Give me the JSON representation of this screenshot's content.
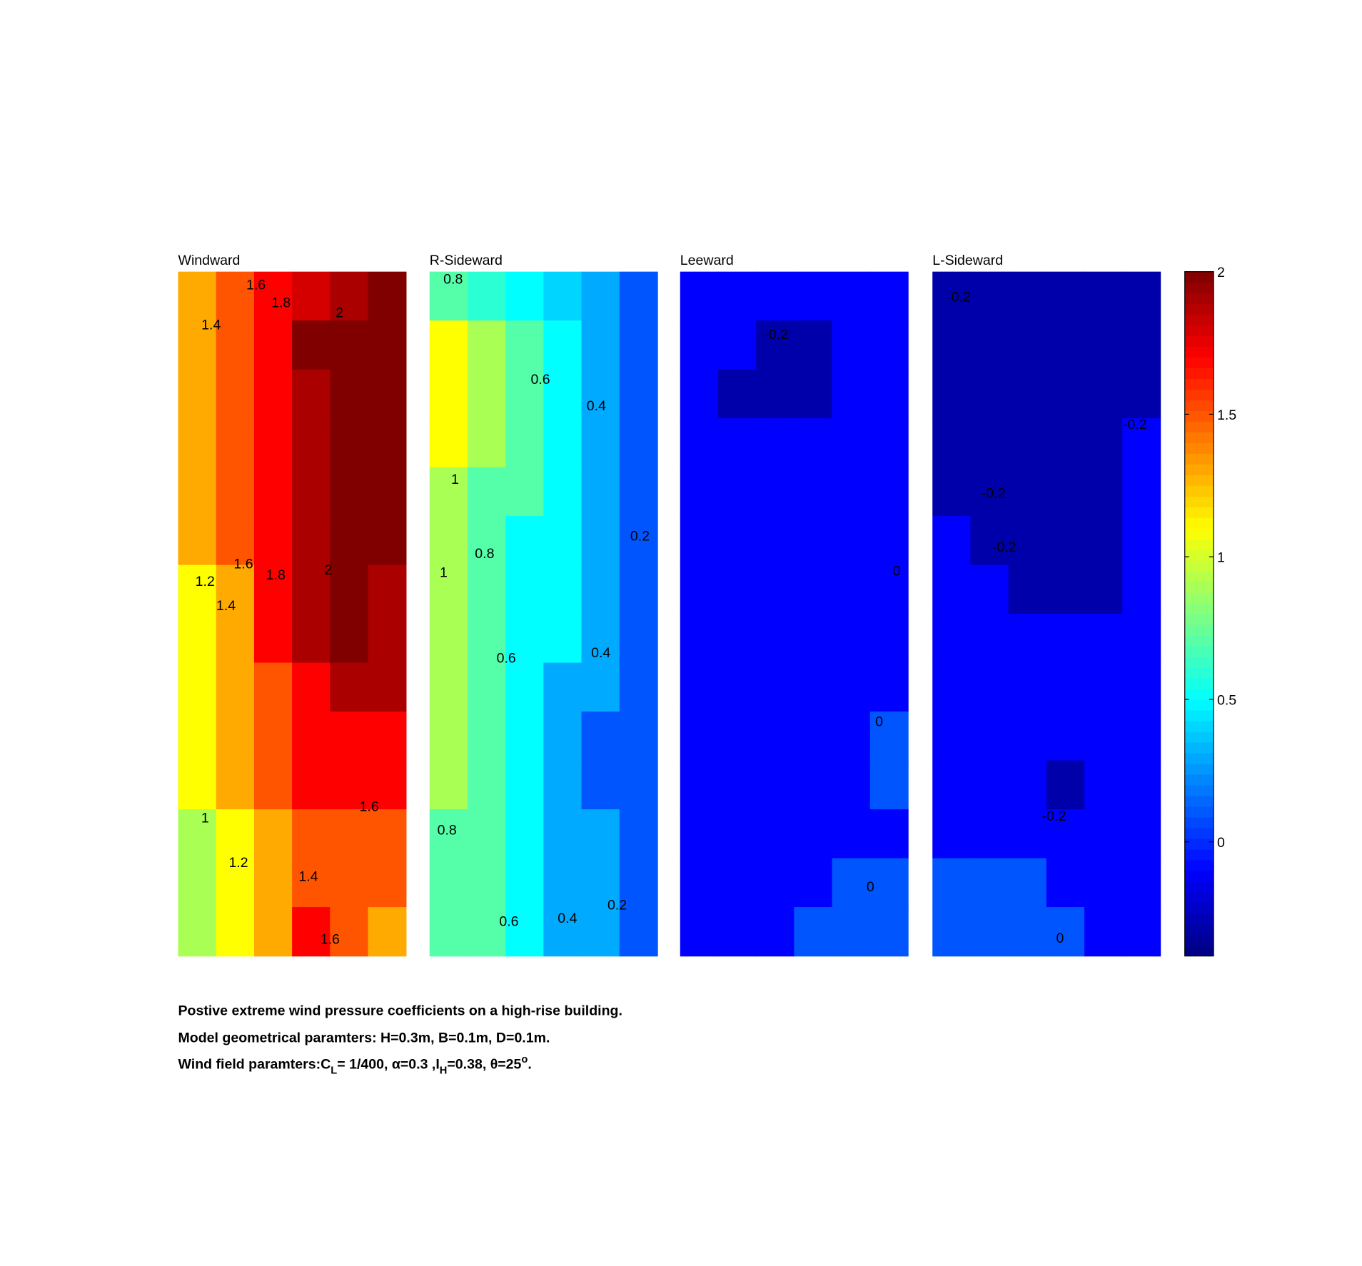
{
  "chart_data": {
    "type": "contour",
    "clim": [
      -0.4,
      2
    ],
    "cticks": [
      0,
      0.5,
      1,
      1.5,
      2
    ],
    "panels": [
      {
        "title": "Windward",
        "grid": [
          [
            1.3,
            1.5,
            1.7,
            1.8,
            1.9,
            2.1
          ],
          [
            1.3,
            1.5,
            1.7,
            2.1,
            2.1,
            2.1
          ],
          [
            1.3,
            1.5,
            1.7,
            1.9,
            2.1,
            2.1
          ],
          [
            1.3,
            1.5,
            1.7,
            1.9,
            2.1,
            2.1
          ],
          [
            1.3,
            1.5,
            1.7,
            1.9,
            2.1,
            2.1
          ],
          [
            1.3,
            1.5,
            1.7,
            1.9,
            2.1,
            2.1
          ],
          [
            1.1,
            1.3,
            1.7,
            1.9,
            2.1,
            1.9
          ],
          [
            1.1,
            1.3,
            1.7,
            1.9,
            2.1,
            1.9
          ],
          [
            1.1,
            1.3,
            1.5,
            1.7,
            1.9,
            1.9
          ],
          [
            1.1,
            1.3,
            1.5,
            1.7,
            1.7,
            1.7
          ],
          [
            1.1,
            1.3,
            1.5,
            1.7,
            1.7,
            1.7
          ],
          [
            0.9,
            1.1,
            1.3,
            1.5,
            1.5,
            1.5
          ],
          [
            0.9,
            1.1,
            1.3,
            1.5,
            1.5,
            1.5
          ],
          [
            0.9,
            1.1,
            1.3,
            1.7,
            1.5,
            1.3
          ]
        ],
        "contour_labels": [
          {
            "value": 1.6,
            "x": 2.05,
            "y": 0.27
          },
          {
            "value": 1.8,
            "x": 2.71,
            "y": 0.64
          },
          {
            "value": 2,
            "x": 4.25,
            "y": 0.84
          },
          {
            "value": 1.4,
            "x": 0.87,
            "y": 1.09
          },
          {
            "value": 1.2,
            "x": 0.71,
            "y": 6.34
          },
          {
            "value": 1.6,
            "x": 1.72,
            "y": 5.98
          },
          {
            "value": 1.8,
            "x": 2.57,
            "y": 6.21
          },
          {
            "value": 2,
            "x": 3.95,
            "y": 6.11
          },
          {
            "value": 1.4,
            "x": 1.26,
            "y": 6.84
          },
          {
            "value": 1.6,
            "x": 5.03,
            "y": 10.95
          },
          {
            "value": 1,
            "x": 0.71,
            "y": 11.18
          },
          {
            "value": 1.2,
            "x": 1.59,
            "y": 12.09
          },
          {
            "value": 1.4,
            "x": 3.43,
            "y": 12.38
          },
          {
            "value": 1.6,
            "x": 4.0,
            "y": 13.66
          }
        ]
      },
      {
        "title": "R-Sideward",
        "grid": [
          [
            0.7,
            0.6,
            0.5,
            0.4,
            0.3,
            0.1
          ],
          [
            1.1,
            0.9,
            0.7,
            0.5,
            0.3,
            0.1
          ],
          [
            1.1,
            0.9,
            0.7,
            0.5,
            0.3,
            0.1
          ],
          [
            1.1,
            0.9,
            0.7,
            0.5,
            0.3,
            0.1
          ],
          [
            0.9,
            0.7,
            0.7,
            0.5,
            0.3,
            0.1
          ],
          [
            0.9,
            0.7,
            0.5,
            0.5,
            0.3,
            0.1
          ],
          [
            0.9,
            0.7,
            0.5,
            0.5,
            0.3,
            0.1
          ],
          [
            0.9,
            0.7,
            0.5,
            0.5,
            0.3,
            0.1
          ],
          [
            0.9,
            0.7,
            0.5,
            0.3,
            0.3,
            0.1
          ],
          [
            0.9,
            0.7,
            0.5,
            0.3,
            0.1,
            0.1
          ],
          [
            0.9,
            0.7,
            0.5,
            0.3,
            0.1,
            0.1
          ],
          [
            0.7,
            0.7,
            0.5,
            0.3,
            0.3,
            0.1
          ],
          [
            0.7,
            0.7,
            0.5,
            0.3,
            0.3,
            0.1
          ],
          [
            0.7,
            0.7,
            0.5,
            0.3,
            0.3,
            0.1
          ]
        ],
        "contour_labels": [
          {
            "value": 0.8,
            "x": 0.62,
            "y": 0.16
          },
          {
            "value": 0.6,
            "x": 2.92,
            "y": 2.21
          },
          {
            "value": 0.4,
            "x": 4.39,
            "y": 2.75
          },
          {
            "value": 1,
            "x": 0.67,
            "y": 4.25
          },
          {
            "value": 0.2,
            "x": 5.54,
            "y": 5.41
          },
          {
            "value": 0.8,
            "x": 1.45,
            "y": 5.77
          },
          {
            "value": 1,
            "x": 0.37,
            "y": 6.16
          },
          {
            "value": 0.6,
            "x": 2.02,
            "y": 7.91
          },
          {
            "value": 0.4,
            "x": 4.51,
            "y": 7.8
          },
          {
            "value": 0.8,
            "x": 0.46,
            "y": 11.43
          },
          {
            "value": 0.2,
            "x": 4.94,
            "y": 12.96
          },
          {
            "value": 0.4,
            "x": 3.63,
            "y": 13.23
          },
          {
            "value": 0.6,
            "x": 2.09,
            "y": 13.3
          }
        ]
      },
      {
        "title": "Leeward",
        "grid": [
          [
            -0.1,
            -0.1,
            -0.1,
            -0.1,
            -0.1,
            -0.1
          ],
          [
            -0.1,
            -0.1,
            -0.3,
            -0.3,
            -0.1,
            -0.1
          ],
          [
            -0.1,
            -0.3,
            -0.3,
            -0.3,
            -0.1,
            -0.1
          ],
          [
            -0.1,
            -0.1,
            -0.1,
            -0.1,
            -0.1,
            -0.1
          ],
          [
            -0.1,
            -0.1,
            -0.1,
            -0.1,
            -0.1,
            -0.1
          ],
          [
            -0.1,
            -0.1,
            -0.1,
            -0.1,
            -0.1,
            -0.1
          ],
          [
            -0.1,
            -0.1,
            -0.1,
            -0.1,
            -0.1,
            -0.1
          ],
          [
            -0.1,
            -0.1,
            -0.1,
            -0.1,
            -0.1,
            -0.1
          ],
          [
            -0.1,
            -0.1,
            -0.1,
            -0.1,
            -0.1,
            -0.1
          ],
          [
            -0.1,
            -0.1,
            -0.1,
            -0.1,
            -0.1,
            0.1
          ],
          [
            -0.1,
            -0.1,
            -0.1,
            -0.1,
            -0.1,
            0.1
          ],
          [
            -0.1,
            -0.1,
            -0.1,
            -0.1,
            -0.1,
            -0.1
          ],
          [
            -0.1,
            -0.1,
            -0.1,
            -0.1,
            0.1,
            0.1
          ],
          [
            -0.1,
            -0.1,
            -0.1,
            0.1,
            0.1,
            0.1
          ]
        ],
        "contour_labels": [
          {
            "value": -0.2,
            "x": 2.53,
            "y": 1.29
          },
          {
            "value": 0,
            "x": 5.7,
            "y": 6.13
          },
          {
            "value": 0,
            "x": 5.24,
            "y": 9.21
          },
          {
            "value": 0,
            "x": 5.01,
            "y": 12.59
          }
        ]
      },
      {
        "title": "L-Sideward",
        "grid": [
          [
            -0.3,
            -0.3,
            -0.3,
            -0.3,
            -0.3,
            -0.3
          ],
          [
            -0.3,
            -0.3,
            -0.3,
            -0.3,
            -0.3,
            -0.3
          ],
          [
            -0.3,
            -0.3,
            -0.3,
            -0.3,
            -0.3,
            -0.3
          ],
          [
            -0.3,
            -0.3,
            -0.3,
            -0.3,
            -0.3,
            -0.1
          ],
          [
            -0.3,
            -0.3,
            -0.3,
            -0.3,
            -0.3,
            -0.1
          ],
          [
            -0.1,
            -0.3,
            -0.3,
            -0.3,
            -0.3,
            -0.1
          ],
          [
            -0.1,
            -0.1,
            -0.3,
            -0.3,
            -0.3,
            -0.1
          ],
          [
            -0.1,
            -0.1,
            -0.1,
            -0.1,
            -0.1,
            -0.1
          ],
          [
            -0.1,
            -0.1,
            -0.1,
            -0.1,
            -0.1,
            -0.1
          ],
          [
            -0.1,
            -0.1,
            -0.1,
            -0.1,
            -0.1,
            -0.1
          ],
          [
            -0.1,
            -0.1,
            -0.1,
            -0.3,
            -0.1,
            -0.1
          ],
          [
            -0.1,
            -0.1,
            -0.1,
            -0.1,
            -0.1,
            -0.1
          ],
          [
            0.1,
            0.1,
            0.1,
            -0.1,
            -0.1,
            -0.1
          ],
          [
            0.1,
            0.1,
            0.1,
            0.1,
            -0.1,
            -0.1
          ]
        ],
        "contour_labels": [
          {
            "value": -0.2,
            "x": 0.69,
            "y": 0.52
          },
          {
            "value": -0.2,
            "x": 5.33,
            "y": 3.13
          },
          {
            "value": -0.2,
            "x": 1.61,
            "y": 4.54
          },
          {
            "value": -0.2,
            "x": 1.89,
            "y": 5.64
          },
          {
            "value": -0.2,
            "x": 3.2,
            "y": 11.14
          },
          {
            "value": 0,
            "x": 3.36,
            "y": 13.64
          }
        ]
      }
    ],
    "caption": [
      "Postive extreme  wind pressure coefficients on a high-rise building.",
      "Model geometrical paramters: H=0.3m, B=0.1m, D=0.1m."
    ],
    "caption_parts": [
      "Wind field paramters:C",
      "L",
      "= 1/400, α=0.3 ,I",
      "H",
      "=0.38, θ=25",
      "o",
      "."
    ]
  }
}
